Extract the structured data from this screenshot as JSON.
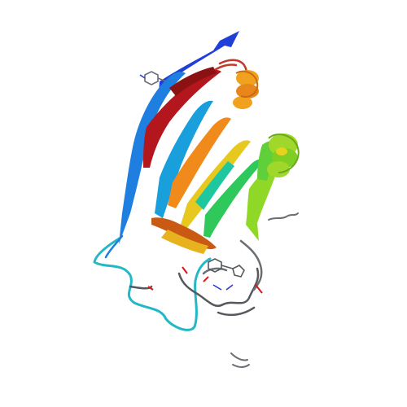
{
  "image": {
    "subject": "protein-ribbon-structure",
    "background_color": "#ffffff",
    "palette": {
      "blue": "#1f3fd6",
      "blue_light": "#1f7fe0",
      "cyan": "#19b8c8",
      "teal": "#1fc7a0",
      "green": "#2fcf5a",
      "lime": "#8fd827",
      "yellow": "#e6d21f",
      "orange": "#f09a1f",
      "orange_dark": "#e86a14",
      "red": "#c81a1a",
      "dark_red": "#8a1212",
      "coil_gray": "#6b6f74",
      "coil_dark": "#4a4e53",
      "heteroatom_red": "#d81818",
      "heteroatom_blue": "#2a3ad8"
    }
  }
}
